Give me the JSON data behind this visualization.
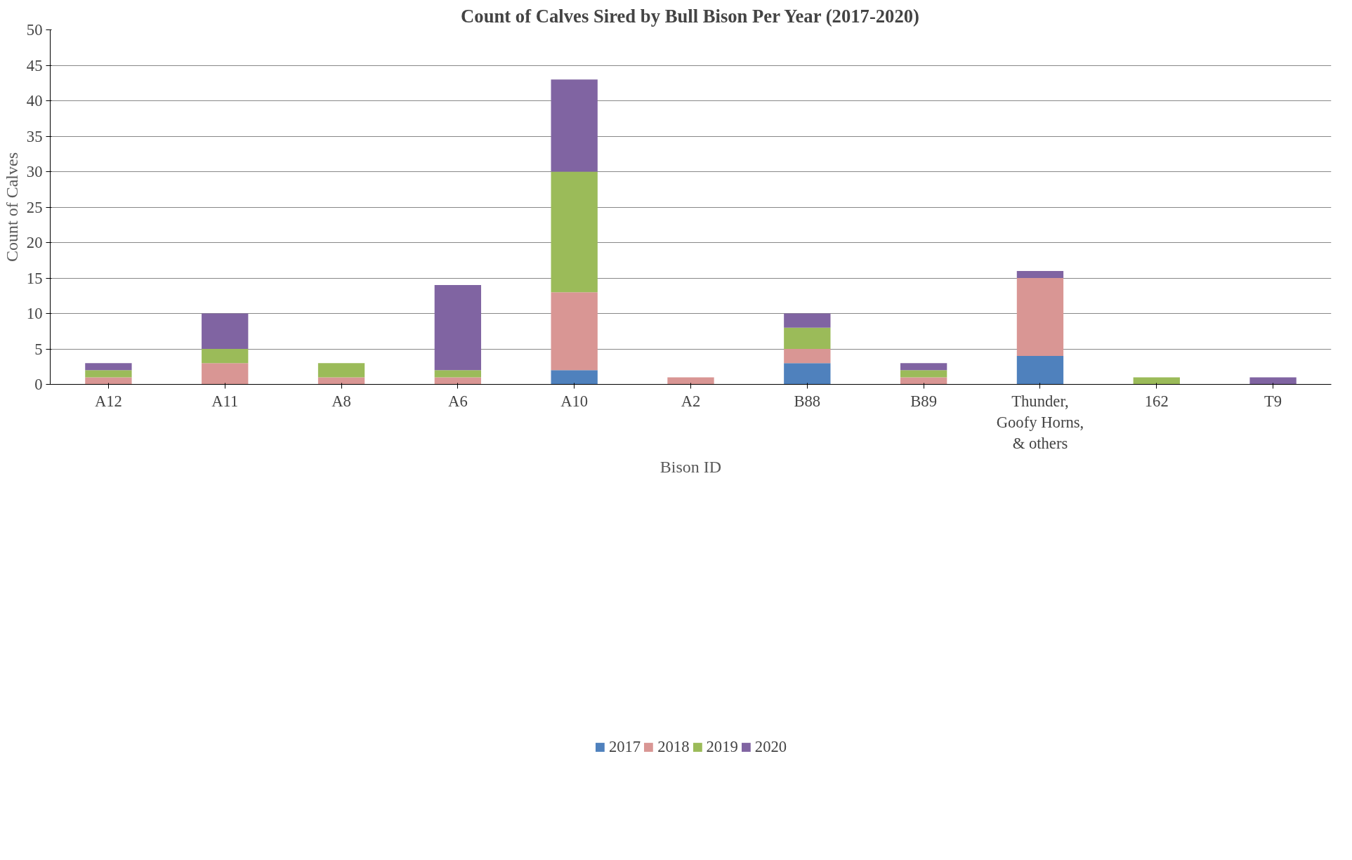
{
  "chart_data": {
    "type": "bar",
    "stacked": true,
    "title": "Count of Calves Sired by Bull Bison Per Year (2017-2020)",
    "xlabel": "Bison ID",
    "ylabel": "Count of Calves",
    "categories": [
      "A12",
      "A11",
      "A8",
      "A6",
      "A10",
      "A2",
      "B88",
      "B89",
      "Thunder,\nGoofy Horns,\n& others",
      "162",
      "T9"
    ],
    "series": [
      {
        "name": "2017",
        "color": "#4f81bd",
        "values": [
          0,
          0,
          0,
          0,
          2,
          0,
          3,
          0,
          4,
          0,
          0
        ]
      },
      {
        "name": "2018",
        "color": "#d99694",
        "values": [
          1,
          3,
          1,
          1,
          11,
          1,
          2,
          1,
          11,
          0,
          0
        ]
      },
      {
        "name": "2019",
        "color": "#9bbb59",
        "values": [
          1,
          2,
          2,
          1,
          17,
          0,
          3,
          1,
          0,
          1,
          0
        ]
      },
      {
        "name": "2020",
        "color": "#8064a2",
        "values": [
          1,
          5,
          0,
          12,
          13,
          0,
          2,
          1,
          1,
          0,
          1
        ]
      }
    ],
    "ylim": [
      0,
      50
    ],
    "yticks": [
      0,
      5,
      10,
      15,
      20,
      25,
      30,
      35,
      40,
      45,
      50
    ],
    "grid": "y",
    "legend": "bottom"
  }
}
